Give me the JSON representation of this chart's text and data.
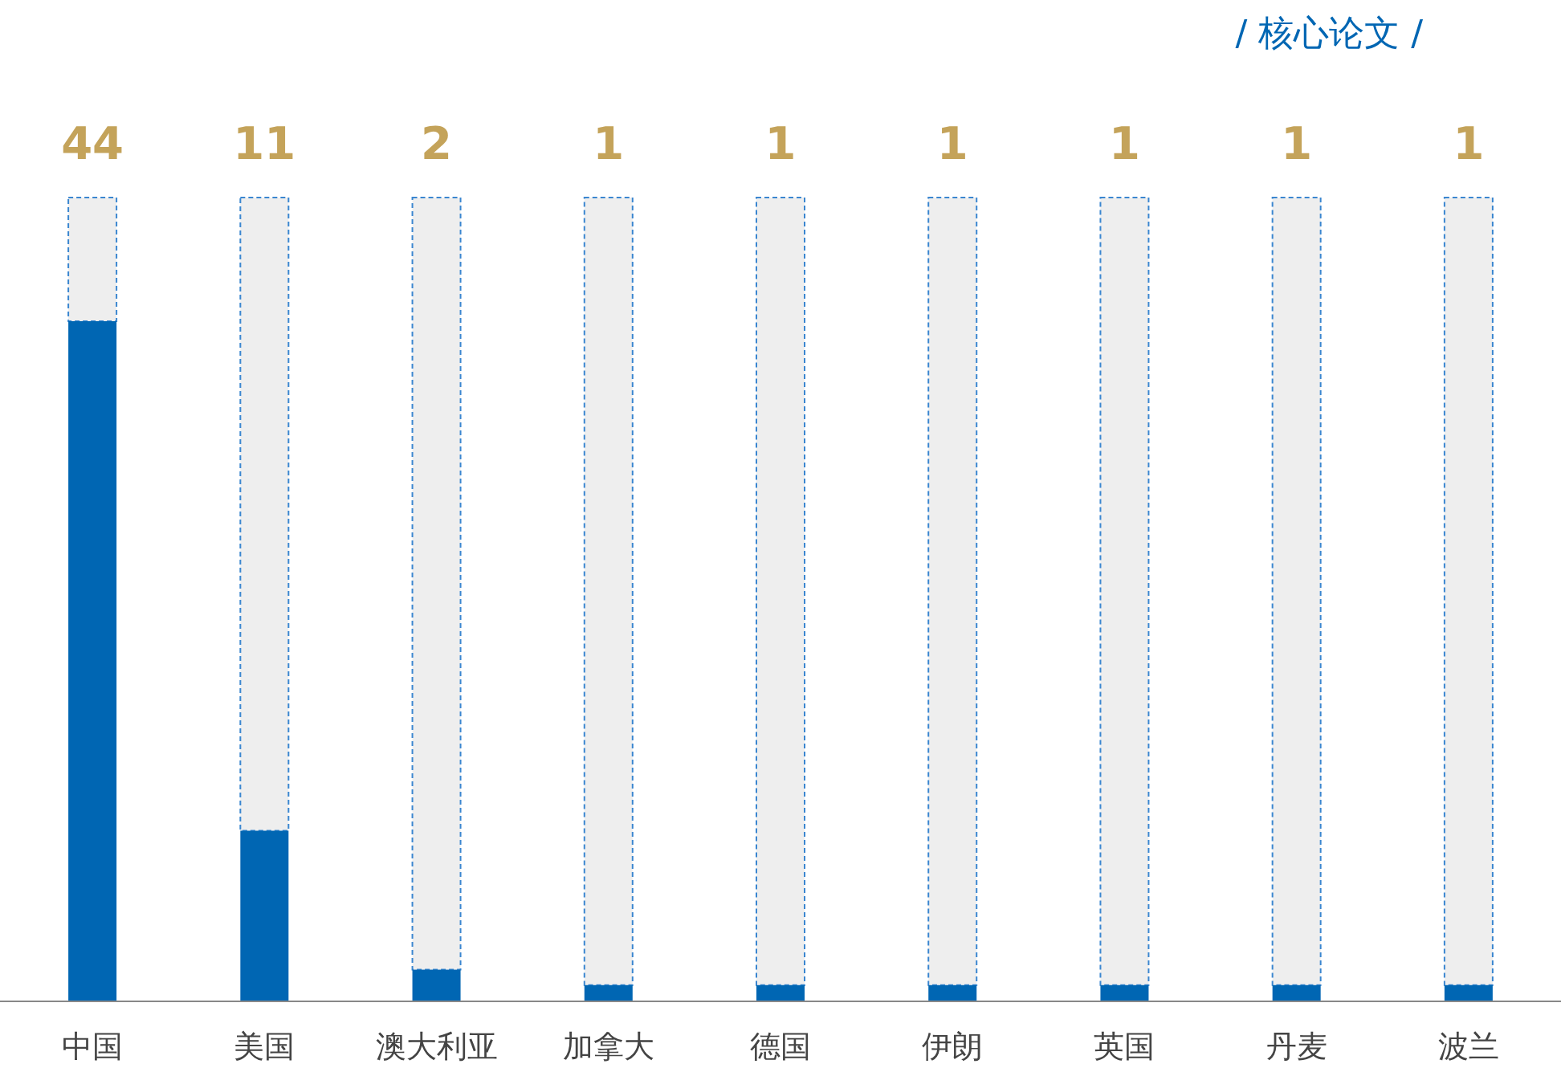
{
  "chart_data": {
    "type": "bar",
    "title": "/ 核心论文 /",
    "categories": [
      "中国",
      "美国",
      "澳大利亚",
      "加拿大",
      "德国",
      "伊朗",
      "英国",
      "丹麦",
      "波兰"
    ],
    "values": [
      44,
      11,
      2,
      1,
      1,
      1,
      1,
      1,
      1
    ],
    "color": "#0066b3",
    "tick_labels": "x",
    "data_labels": true
  }
}
